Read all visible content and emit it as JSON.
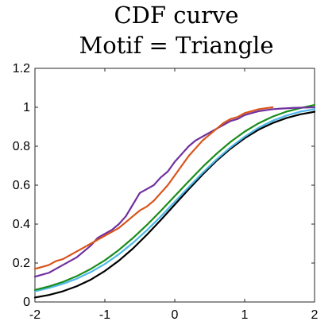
{
  "chart_data": {
    "type": "line",
    "title_lines": [
      "CDF curve",
      "Motif = Triangle"
    ],
    "xlabel": "",
    "ylabel": "",
    "xlim": [
      -2,
      2
    ],
    "ylim": [
      0,
      1.2
    ],
    "x_ticks": [
      -2,
      -1,
      0,
      1,
      2
    ],
    "y_ticks": [
      0,
      0.2,
      0.4,
      0.6,
      0.8,
      1,
      1.2
    ],
    "x_tick_labels": [
      "-2",
      "-1",
      "0",
      "1",
      "2"
    ],
    "y_tick_labels": [
      "0",
      "0.2",
      "0.4",
      "0.6",
      "0.8",
      "1",
      "1.2"
    ],
    "grid": false,
    "legend": "none",
    "series": [
      {
        "color": "#000000",
        "x": [
          -2.0,
          -1.8,
          -1.6,
          -1.4,
          -1.2,
          -1.0,
          -0.8,
          -0.6,
          -0.4,
          -0.2,
          0.0,
          0.2,
          0.4,
          0.6,
          0.8,
          1.0,
          1.2,
          1.4,
          1.6,
          1.8,
          2.0
        ],
        "y": [
          0.023,
          0.036,
          0.055,
          0.081,
          0.115,
          0.159,
          0.212,
          0.274,
          0.345,
          0.421,
          0.5,
          0.579,
          0.655,
          0.726,
          0.788,
          0.841,
          0.885,
          0.919,
          0.945,
          0.964,
          0.977
        ]
      },
      {
        "color": "#4db8e8",
        "x": [
          -2.0,
          -1.8,
          -1.6,
          -1.4,
          -1.2,
          -1.0,
          -0.8,
          -0.6,
          -0.4,
          -0.2,
          0.0,
          0.2,
          0.4,
          0.6,
          0.8,
          1.0,
          1.2,
          1.4,
          1.6,
          1.8,
          2.0
        ],
        "y": [
          0.055,
          0.072,
          0.093,
          0.12,
          0.154,
          0.195,
          0.245,
          0.303,
          0.368,
          0.439,
          0.515,
          0.59,
          0.664,
          0.733,
          0.795,
          0.849,
          0.895,
          0.931,
          0.958,
          0.978,
          0.99
        ]
      },
      {
        "color": "#1a8c1a",
        "x": [
          -2.0,
          -1.8,
          -1.6,
          -1.4,
          -1.2,
          -1.0,
          -0.8,
          -0.6,
          -0.4,
          -0.2,
          0.0,
          0.2,
          0.4,
          0.6,
          0.8,
          1.0,
          1.2,
          1.4,
          1.6,
          1.8,
          2.0
        ],
        "y": [
          0.062,
          0.08,
          0.103,
          0.133,
          0.17,
          0.214,
          0.267,
          0.328,
          0.395,
          0.468,
          0.544,
          0.62,
          0.694,
          0.762,
          0.823,
          0.875,
          0.918,
          0.952,
          0.978,
          0.996,
          1.012
        ]
      },
      {
        "color": "#7030a0",
        "x": [
          -2.0,
          -1.9,
          -1.8,
          -1.7,
          -1.6,
          -1.5,
          -1.4,
          -1.3,
          -1.2,
          -1.1,
          -1.0,
          -0.9,
          -0.8,
          -0.7,
          -0.6,
          -0.5,
          -0.4,
          -0.3,
          -0.2,
          -0.1,
          0.0,
          0.1,
          0.2,
          0.3,
          0.4,
          0.5,
          0.6,
          0.7,
          0.8,
          0.9,
          1.0,
          1.1,
          1.2,
          1.3,
          1.4,
          1.5,
          1.6,
          1.7,
          1.8,
          1.9,
          2.0
        ],
        "y": [
          0.13,
          0.14,
          0.15,
          0.17,
          0.19,
          0.21,
          0.23,
          0.26,
          0.29,
          0.33,
          0.35,
          0.37,
          0.4,
          0.44,
          0.5,
          0.56,
          0.58,
          0.6,
          0.64,
          0.67,
          0.72,
          0.76,
          0.8,
          0.83,
          0.85,
          0.87,
          0.89,
          0.91,
          0.93,
          0.94,
          0.96,
          0.97,
          0.98,
          0.985,
          0.99,
          0.993,
          0.995,
          0.997,
          0.998,
          0.999,
          1.0
        ]
      },
      {
        "color": "#d9541a",
        "x": [
          -2.0,
          -1.9,
          -1.8,
          -1.7,
          -1.6,
          -1.5,
          -1.4,
          -1.3,
          -1.2,
          -1.1,
          -1.0,
          -0.9,
          -0.8,
          -0.7,
          -0.6,
          -0.5,
          -0.4,
          -0.3,
          -0.2,
          -0.1,
          0.0,
          0.1,
          0.2,
          0.3,
          0.4,
          0.5,
          0.6,
          0.7,
          0.8,
          0.9,
          1.0,
          1.1,
          1.2,
          1.3,
          1.4
        ],
        "y": [
          0.17,
          0.18,
          0.19,
          0.21,
          0.22,
          0.24,
          0.26,
          0.28,
          0.3,
          0.32,
          0.34,
          0.36,
          0.38,
          0.41,
          0.44,
          0.47,
          0.49,
          0.52,
          0.56,
          0.6,
          0.65,
          0.7,
          0.75,
          0.79,
          0.83,
          0.86,
          0.89,
          0.92,
          0.94,
          0.95,
          0.97,
          0.98,
          0.99,
          0.995,
          1.0
        ]
      }
    ]
  }
}
